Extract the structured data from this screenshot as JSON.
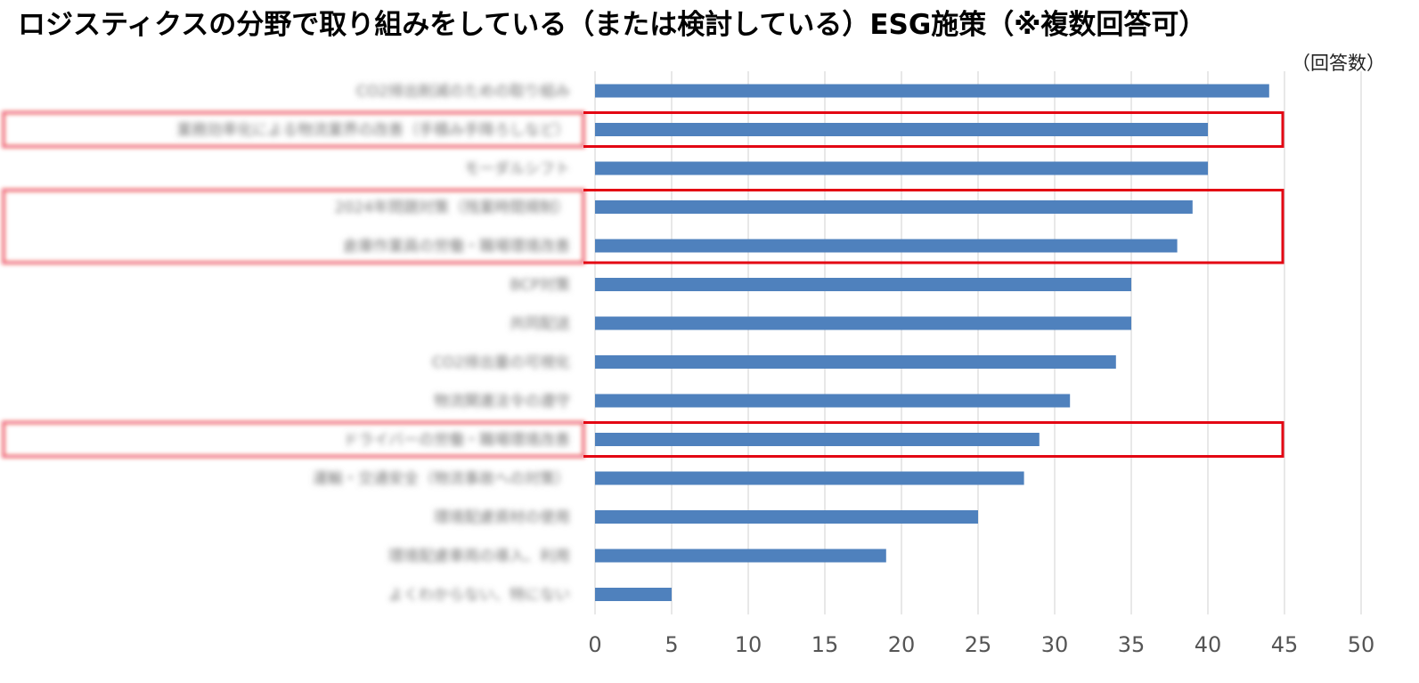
{
  "title": "ロジスティクスの分野で取り組みをしている（または検討している）ESG施策（※複数回答可）",
  "unit_label": "（回答数）",
  "colors": {
    "bar": "#4f81bd",
    "highlight": "#e30613",
    "grid": "#d9d9d9"
  },
  "chart_data": {
    "type": "bar",
    "orientation": "horizontal",
    "categories": [
      "CO2排出削減のための取り組み",
      "業務効率化による物流業界の改善（手積み手降ろしなど）",
      "モーダルシフト",
      "2024年問題対策（残業時間規制）",
      "倉庫作業員の労働・職場環境改善",
      "BCP対策",
      "共同配送",
      "CO2排出量の可視化",
      "物流関連法令の遵守",
      "ドライバーの労働・職場環境改善",
      "運輸・交通安全（物流事故への対策）",
      "環境配慮資材の使用",
      "環境配慮車両の導入、利用",
      "よくわからない、特にない"
    ],
    "values": [
      44,
      40,
      40,
      39,
      38,
      35,
      35,
      34,
      31,
      29,
      28,
      25,
      19,
      5
    ],
    "xlim": [
      0,
      50
    ],
    "xticks": [
      0,
      5,
      10,
      15,
      20,
      25,
      30,
      35,
      40,
      45,
      50
    ],
    "grid": true,
    "highlight_groups": [
      [
        1
      ],
      [
        3,
        4
      ],
      [
        9
      ]
    ],
    "category_labels_blurred": true
  }
}
